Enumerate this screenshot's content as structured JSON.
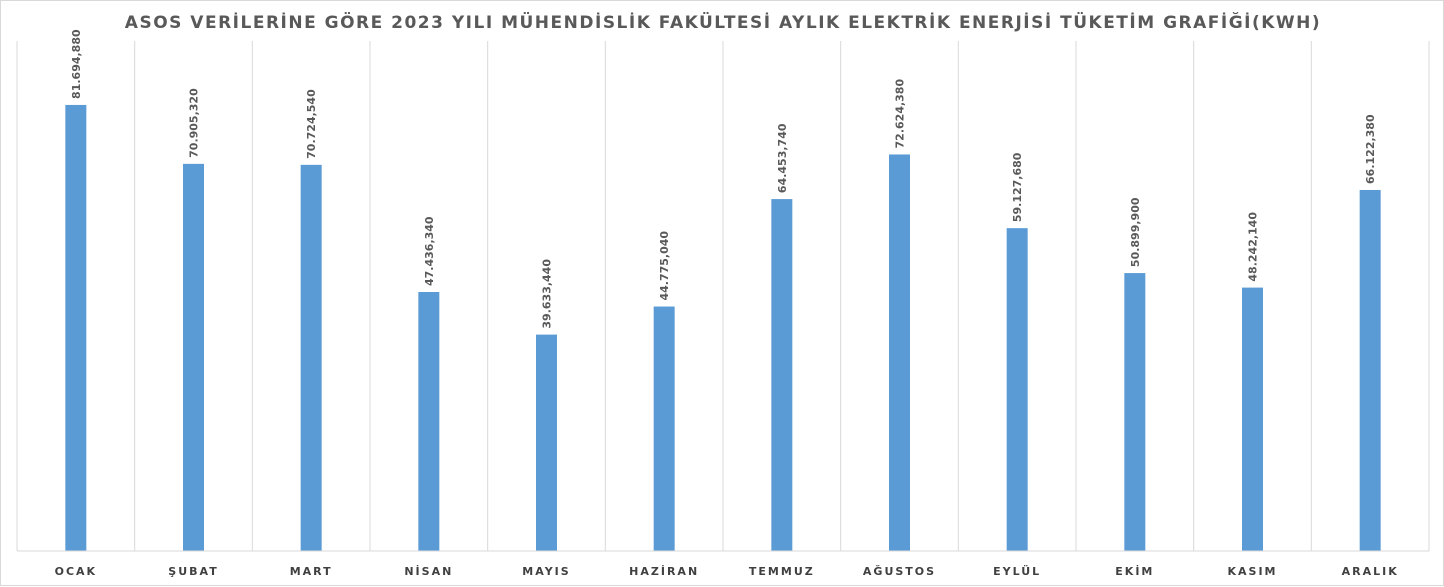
{
  "chart_data": {
    "type": "bar",
    "title": "ASOS VERİLERİNE GÖRE 2023 YILI MÜHENDİSLİK FAKÜLTESİ AYLIK ELEKTRİK ENERJİSİ TÜKETİM GRAFİĞİ(KWH)",
    "categories": [
      "OCAK",
      "ŞUBAT",
      "MART",
      "NİSAN",
      "MAYIS",
      "HAZİRAN",
      "TEMMUZ",
      "AĞUSTOS",
      "EYLÜL",
      "EKİM",
      "KASIM",
      "ARALIK"
    ],
    "values": [
      81694880,
      70905320,
      70724540,
      47436340,
      39633440,
      44775040,
      64453740,
      72624380,
      59127680,
      50899900,
      48242140,
      66122380
    ],
    "data_labels": [
      "81.694,880",
      "70.905,320",
      "70.724,540",
      "47.436,340",
      "39.633,440",
      "44.775,040",
      "64.453,740",
      "72.624,380",
      "59.127,680",
      "50.899,900",
      "48.242,140",
      "66.122,380"
    ],
    "ylim": [
      0,
      100000000
    ],
    "grid": "vertical-category-separators",
    "legend": "none",
    "bar_color": "#5b9bd5"
  }
}
